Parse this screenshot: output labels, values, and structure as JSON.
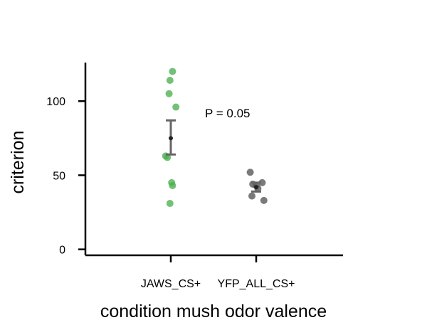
{
  "chart_data": {
    "type": "scatter",
    "title": "",
    "xlabel": "condition  mush  odor  valence",
    "ylabel": "criterion",
    "categories": [
      "JAWS_CS+",
      "YFP_ALL_CS+"
    ],
    "ylim": [
      -4,
      126
    ],
    "yticks": [
      0,
      50,
      100
    ],
    "grid": false,
    "series": [
      {
        "category": "JAWS_CS+",
        "color": "#4caf50",
        "points": [
          {
            "jitter": 0.02,
            "y": 120
          },
          {
            "jitter": -0.01,
            "y": 114
          },
          {
            "jitter": -0.02,
            "y": 105
          },
          {
            "jitter": 0.06,
            "y": 96
          },
          {
            "jitter": -0.06,
            "y": 63
          },
          {
            "jitter": -0.04,
            "y": 62
          },
          {
            "jitter": 0.01,
            "y": 45
          },
          {
            "jitter": 0.02,
            "y": 43
          },
          {
            "jitter": -0.01,
            "y": 31
          }
        ],
        "mean": 75,
        "sem": [
          64,
          87
        ]
      },
      {
        "category": "YFP_ALL_CS+",
        "color": "#555555",
        "points": [
          {
            "jitter": -0.07,
            "y": 52
          },
          {
            "jitter": 0.07,
            "y": 45
          },
          {
            "jitter": -0.04,
            "y": 44
          },
          {
            "jitter": 0.0,
            "y": 43
          },
          {
            "jitter": 0.02,
            "y": 41
          },
          {
            "jitter": -0.05,
            "y": 36
          },
          {
            "jitter": 0.09,
            "y": 33
          }
        ],
        "mean": 42,
        "sem": [
          39,
          45
        ]
      }
    ],
    "annotations": [
      {
        "text": "P = 0.05",
        "x": 1.5,
        "y": 92
      }
    ]
  }
}
